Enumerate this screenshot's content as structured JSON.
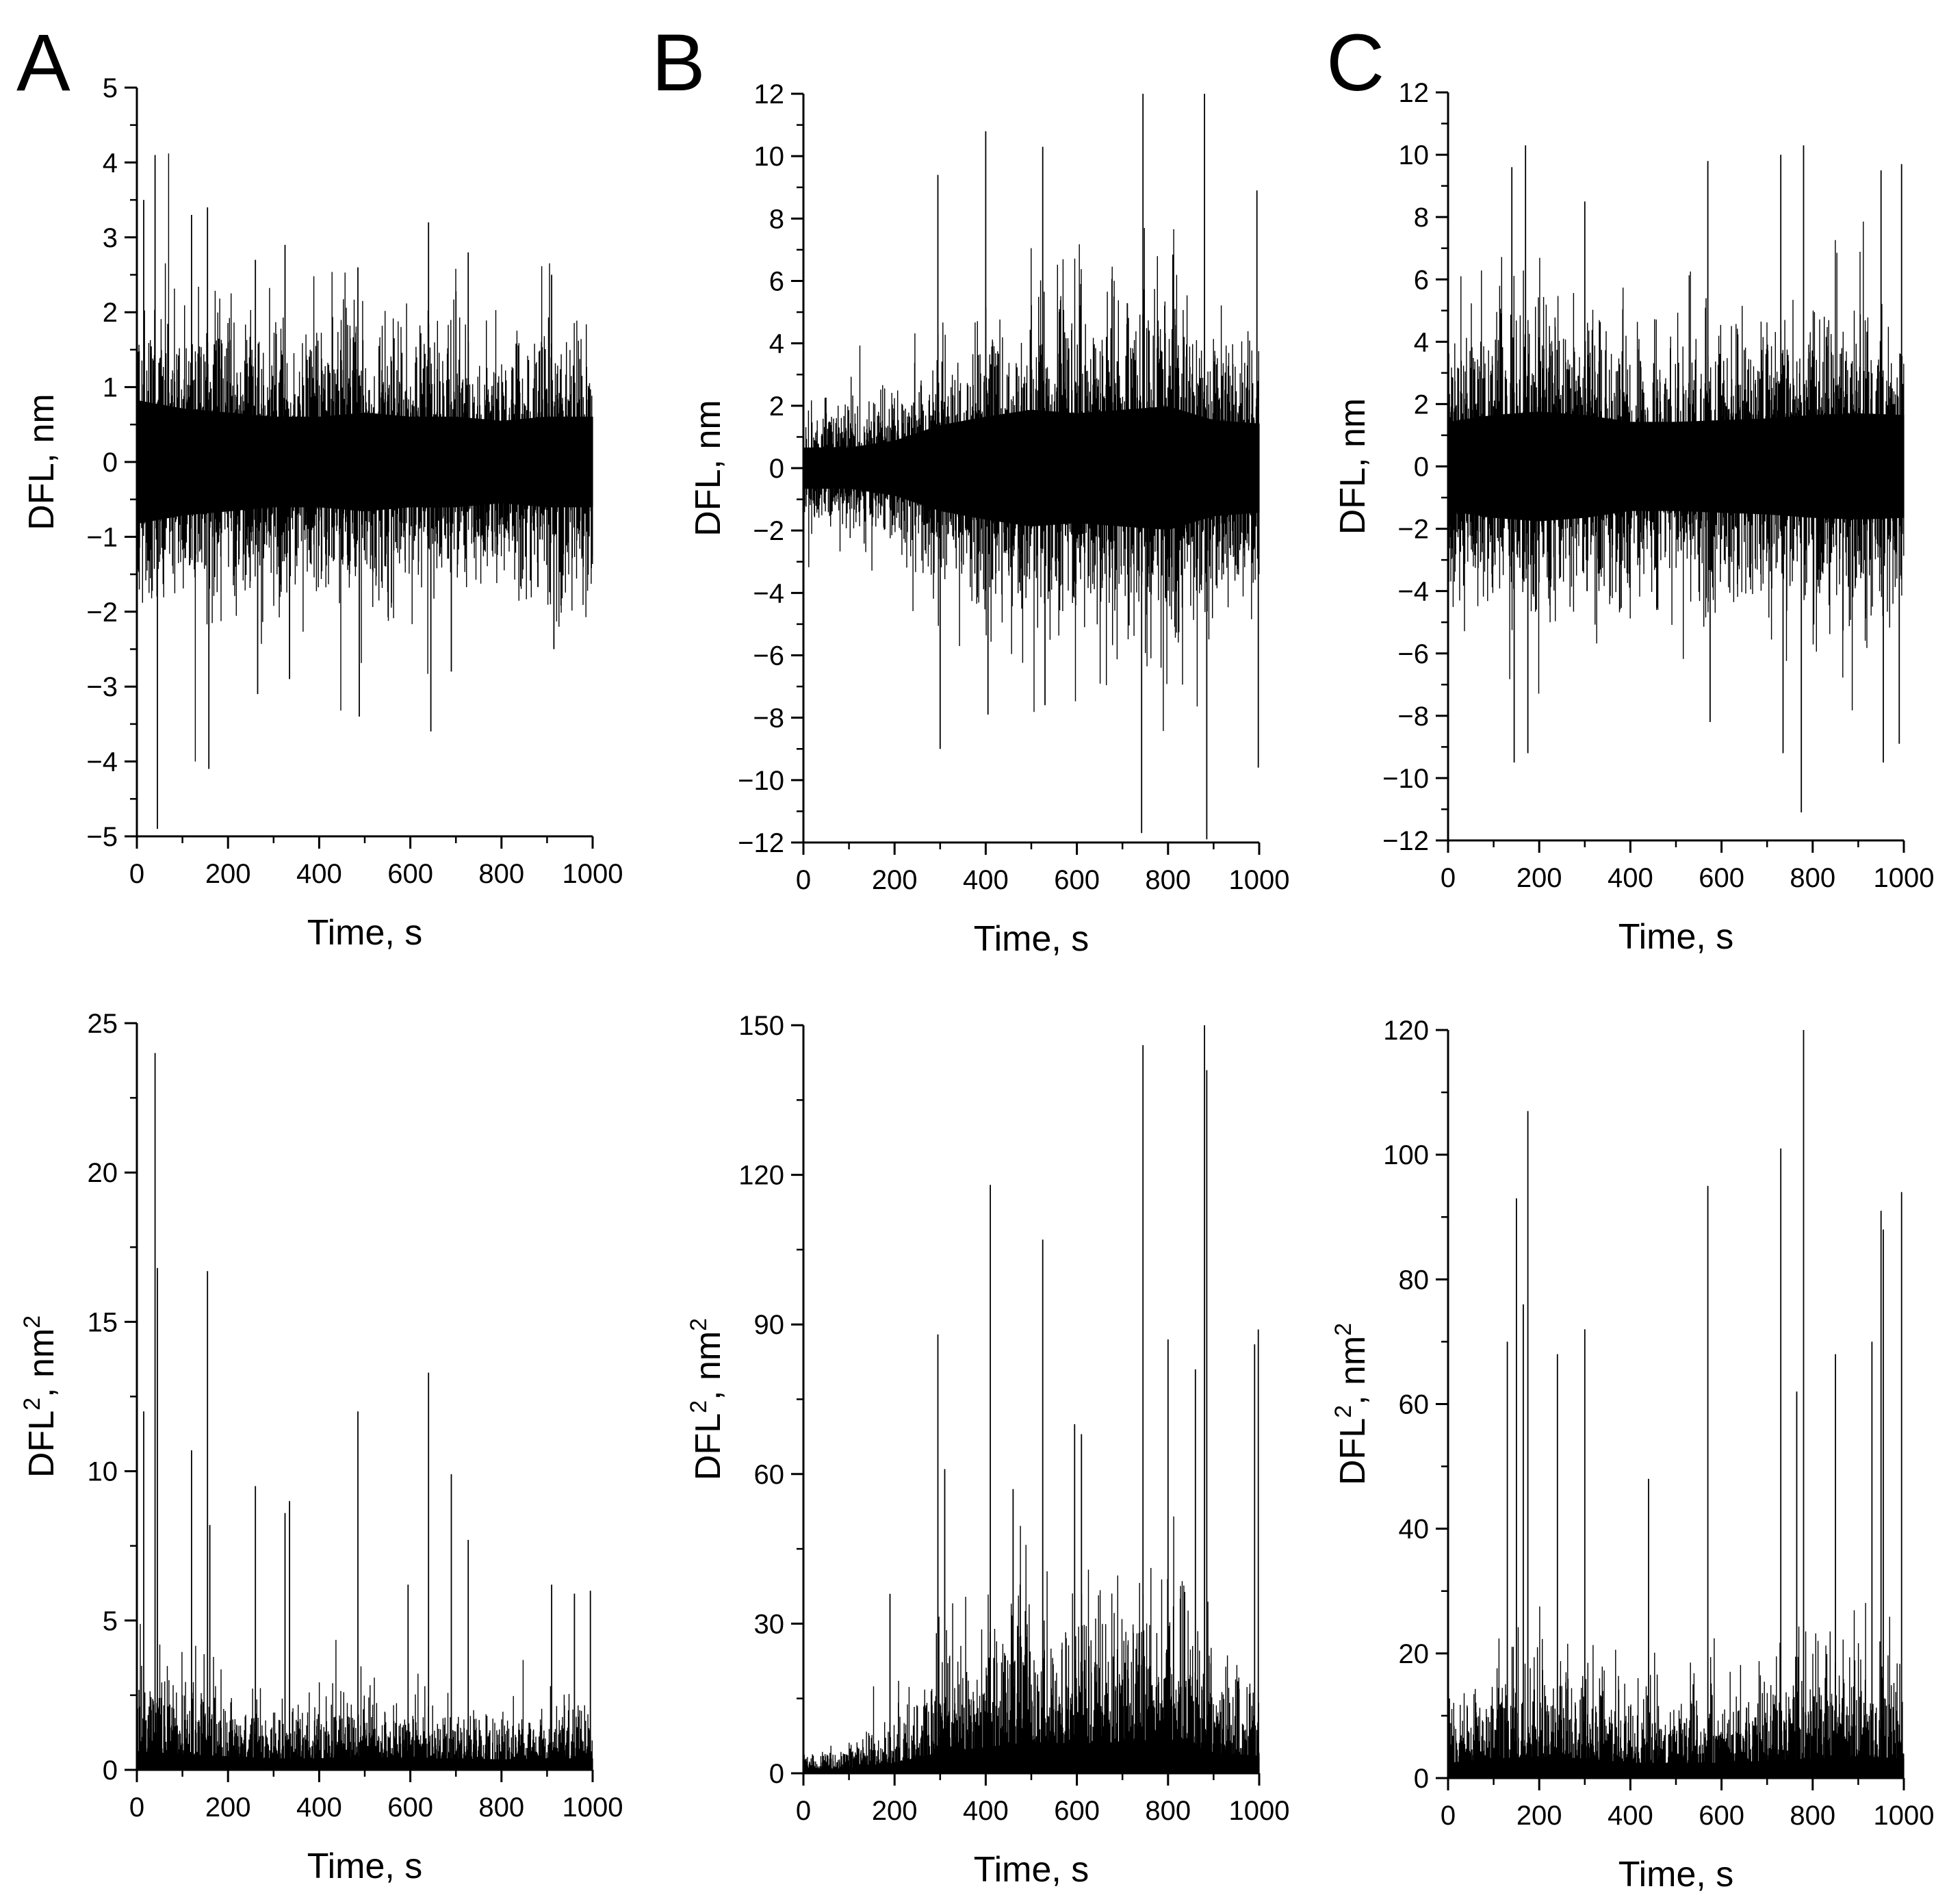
{
  "chart_data": [
    {
      "panel": "A",
      "row": "top",
      "type": "line",
      "title": "",
      "xlabel": "Time, s",
      "ylabel": "DFL, nm",
      "xlim": [
        0,
        1000
      ],
      "ylim": [
        -5,
        5
      ],
      "xticks": [
        "0",
        "200",
        "400",
        "600",
        "800",
        "1000"
      ],
      "yticks": [
        "−5",
        "−4",
        "−3",
        "−2",
        "−1",
        "0",
        "1",
        "2",
        "3",
        "4",
        "5"
      ],
      "series": [
        {
          "name": "DFL",
          "color": "#000000",
          "envelope": {
            "x": [
              0,
              100,
              200,
              300,
              400,
              500,
              600,
              700,
              800,
              900,
              1000
            ],
            "amplitude": [
              1.5,
              1.3,
              1.2,
              1.1,
              1.1,
              1.2,
              1.1,
              1.1,
              1.0,
              1.1,
              1.1
            ]
          },
          "peaks": [
            [
              15,
              3.5
            ],
            [
              40,
              4.1
            ],
            [
              45,
              -4.9
            ],
            [
              120,
              3.3
            ],
            [
              155,
              3.4
            ],
            [
              158,
              -4.1
            ],
            [
              260,
              2.7
            ],
            [
              265,
              -3.1
            ],
            [
              325,
              2.9
            ],
            [
              335,
              -2.9
            ],
            [
              485,
              2.6
            ],
            [
              488,
              -3.4
            ],
            [
              640,
              3.2
            ],
            [
              645,
              -3.6
            ],
            [
              690,
              -2.8
            ],
            [
              727,
              2.8
            ],
            [
              910,
              2.5
            ],
            [
              915,
              -2.5
            ]
          ]
        }
      ]
    },
    {
      "panel": "B",
      "row": "top",
      "type": "line",
      "title": "",
      "xlabel": "Time, s",
      "ylabel": "DFL, nm",
      "xlim": [
        0,
        1000
      ],
      "ylim": [
        -12,
        12
      ],
      "xticks": [
        "0",
        "200",
        "400",
        "600",
        "800",
        "1000"
      ],
      "yticks": [
        "−12",
        "−10",
        "−8",
        "−6",
        "−4",
        "−2",
        "0",
        "2",
        "4",
        "6",
        "8",
        "10",
        "12"
      ],
      "series": [
        {
          "name": "DFL",
          "color": "#000000",
          "envelope": {
            "x": [
              0,
              100,
              200,
              300,
              400,
              500,
              600,
              700,
              800,
              900,
              1000
            ],
            "amplitude": [
              1.2,
              1.2,
              1.6,
              2.5,
              3.0,
              3.4,
              3.2,
              3.4,
              3.6,
              2.8,
              2.6
            ]
          },
          "peaks": [
            [
              295,
              9.4
            ],
            [
              300,
              -9.0
            ],
            [
              400,
              10.8
            ],
            [
              405,
              -7.9
            ],
            [
              525,
              10.3
            ],
            [
              530,
              -7.6
            ],
            [
              745,
              12.0
            ],
            [
              742,
              -11.7
            ],
            [
              880,
              12.0
            ],
            [
              885,
              -11.9
            ],
            [
              995,
              8.9
            ],
            [
              998,
              -9.6
            ]
          ]
        }
      ]
    },
    {
      "panel": "C",
      "row": "top",
      "type": "line",
      "title": "",
      "xlabel": "Time, s",
      "ylabel": "DFL, nm",
      "xlim": [
        0,
        1000
      ],
      "ylim": [
        -12,
        12
      ],
      "xticks": [
        "0",
        "200",
        "400",
        "600",
        "800",
        "1000"
      ],
      "yticks": [
        "−12",
        "−10",
        "−8",
        "−6",
        "−4",
        "−2",
        "0",
        "2",
        "4",
        "6",
        "8",
        "10",
        "12"
      ],
      "series": [
        {
          "name": "DFL",
          "color": "#000000",
          "envelope": {
            "x": [
              0,
              100,
              200,
              300,
              400,
              500,
              600,
              700,
              800,
              900,
              1000
            ],
            "amplitude": [
              2.6,
              3.0,
              3.2,
              3.0,
              2.6,
              2.6,
              2.7,
              2.8,
              3.0,
              3.1,
              3.0
            ]
          },
          "peaks": [
            [
              140,
              9.6
            ],
            [
              145,
              -9.5
            ],
            [
              170,
              10.3
            ],
            [
              175,
              -9.2
            ],
            [
              300,
              8.5
            ],
            [
              570,
              9.8
            ],
            [
              575,
              -8.2
            ],
            [
              730,
              10.0
            ],
            [
              735,
              -9.2
            ],
            [
              780,
              10.3
            ],
            [
              775,
              -11.1
            ],
            [
              950,
              9.5
            ],
            [
              955,
              -9.5
            ],
            [
              995,
              9.7
            ],
            [
              990,
              -8.9
            ]
          ]
        }
      ]
    },
    {
      "panel": "A",
      "row": "bottom",
      "type": "line",
      "title": "",
      "xlabel": "Time, s",
      "ylabel": "DFL², nm²",
      "ylabel_parts": {
        "a": "DFL",
        "b": "2",
        "c": ", nm",
        "d": "2"
      },
      "xlim": [
        0,
        1000
      ],
      "ylim": [
        0,
        25
      ],
      "xticks": [
        "0",
        "200",
        "400",
        "600",
        "800",
        "1000"
      ],
      "yticks": [
        "0",
        "5",
        "10",
        "15",
        "20",
        "25"
      ],
      "series": [
        {
          "name": "DFL²",
          "color": "#000000",
          "envelope": {
            "x": [
              0,
              100,
              200,
              300,
              400,
              500,
              600,
              700,
              800,
              900,
              1000
            ],
            "amplitude": [
              1.8,
              1.5,
              1.3,
              1.1,
              1.1,
              1.3,
              1.1,
              1.1,
              1.0,
              1.1,
              1.1
            ]
          },
          "peaks": [
            [
              15,
              12.0
            ],
            [
              40,
              24.0
            ],
            [
              45,
              16.8
            ],
            [
              120,
              10.7
            ],
            [
              155,
              16.7
            ],
            [
              160,
              8.2
            ],
            [
              260,
              9.5
            ],
            [
              325,
              8.6
            ],
            [
              335,
              9.0
            ],
            [
              485,
              12.0
            ],
            [
              595,
              6.2
            ],
            [
              640,
              13.3
            ],
            [
              690,
              9.9
            ],
            [
              727,
              7.7
            ],
            [
              910,
              6.2
            ],
            [
              960,
              5.9
            ],
            [
              995,
              6.0
            ]
          ]
        }
      ]
    },
    {
      "panel": "B",
      "row": "bottom",
      "type": "line",
      "title": "",
      "xlabel": "Time, s",
      "ylabel": "DFL², nm²",
      "ylabel_parts": {
        "a": "DFL",
        "b": "2",
        "c": ", nm",
        "d": "2"
      },
      "xlim": [
        0,
        1000
      ],
      "ylim": [
        0,
        150
      ],
      "xticks": [
        "0",
        "200",
        "400",
        "600",
        "800",
        "1000"
      ],
      "yticks": [
        "0",
        "30",
        "60",
        "90",
        "120",
        "150"
      ],
      "series": [
        {
          "name": "DFL²",
          "color": "#000000",
          "envelope": {
            "x": [
              0,
              100,
              200,
              300,
              400,
              500,
              600,
              700,
              800,
              900,
              1000
            ],
            "amplitude": [
              2,
              3,
              6,
              12,
              15,
              18,
              17,
              18,
              20,
              12,
              10
            ]
          },
          "peaks": [
            [
              190,
              36
            ],
            [
              295,
              88
            ],
            [
              310,
              61
            ],
            [
              410,
              118
            ],
            [
              460,
              57
            ],
            [
              525,
              107
            ],
            [
              595,
              70
            ],
            [
              610,
              68
            ],
            [
              745,
              146
            ],
            [
              800,
              87
            ],
            [
              860,
              81
            ],
            [
              880,
              150
            ],
            [
              885,
              141
            ],
            [
              990,
              86
            ],
            [
              998,
              89
            ]
          ]
        }
      ]
    },
    {
      "panel": "C",
      "row": "bottom",
      "type": "line",
      "title": "",
      "xlabel": "Time, s",
      "ylabel": "DFL², nm²",
      "ylabel_parts": {
        "a": "DFL",
        "b": "2",
        "c": ", nm",
        "d": "2"
      },
      "xlim": [
        0,
        1000
      ],
      "ylim": [
        0,
        120
      ],
      "xticks": [
        "0",
        "200",
        "400",
        "600",
        "800",
        "1000"
      ],
      "yticks": [
        "0",
        "20",
        "40",
        "60",
        "80",
        "100",
        "120"
      ],
      "series": [
        {
          "name": "DFL²",
          "color": "#000000",
          "envelope": {
            "x": [
              0,
              100,
              200,
              300,
              400,
              500,
              600,
              700,
              800,
              900,
              1000
            ],
            "amplitude": [
              7,
              9,
              10,
              9,
              7,
              7,
              7,
              8,
              9,
              10,
              9
            ]
          },
          "peaks": [
            [
              130,
              70
            ],
            [
              150,
              93
            ],
            [
              165,
              76
            ],
            [
              175,
              107
            ],
            [
              240,
              68
            ],
            [
              300,
              72
            ],
            [
              440,
              48
            ],
            [
              570,
              95
            ],
            [
              730,
              101
            ],
            [
              765,
              62
            ],
            [
              780,
              120
            ],
            [
              850,
              68
            ],
            [
              930,
              70
            ],
            [
              950,
              91
            ],
            [
              955,
              88
            ],
            [
              995,
              94
            ]
          ]
        }
      ]
    }
  ],
  "panels": {
    "a": "A",
    "b": "B",
    "c": "C"
  }
}
